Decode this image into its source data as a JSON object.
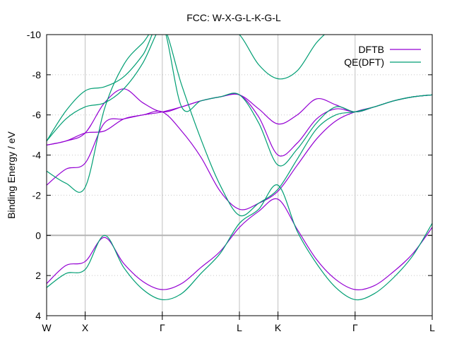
{
  "chart_data": {
    "type": "line",
    "title": "FCC: W-X-G-L-K-G-L",
    "xlabel": "",
    "ylabel": "Binding Energy / eV",
    "xlim": [
      0,
      1
    ],
    "ylim": [
      4,
      -10
    ],
    "y_ticks": [
      -10,
      -8,
      -6,
      -4,
      -2,
      0,
      2,
      4
    ],
    "k_points": [
      {
        "label": "W",
        "x": 0.0
      },
      {
        "label": "X",
        "x": 0.1
      },
      {
        "label": "Γ",
        "x": 0.3
      },
      {
        "label": "L",
        "x": 0.5
      },
      {
        "label": "K",
        "x": 0.6
      },
      {
        "label": "Γ",
        "x": 0.8
      },
      {
        "label": "L",
        "x": 1.0
      }
    ],
    "grid": true,
    "zero_line": true,
    "legend_position": "top-right",
    "series": [
      {
        "name": "DFTB",
        "color": "#9400d3",
        "bands": [
          [
            [
              0,
              2.4
            ],
            [
              0.05,
              1.5
            ],
            [
              0.1,
              1.3
            ],
            [
              0.15,
              0.1
            ],
            [
              0.2,
              1.4
            ],
            [
              0.25,
              2.3
            ],
            [
              0.3,
              2.7
            ],
            [
              0.35,
              2.4
            ],
            [
              0.4,
              1.6
            ],
            [
              0.45,
              0.8
            ],
            [
              0.5,
              -0.4
            ],
            [
              0.55,
              -1.2
            ],
            [
              0.6,
              -1.8
            ],
            [
              0.65,
              -0.3
            ],
            [
              0.7,
              1.2
            ],
            [
              0.75,
              2.2
            ],
            [
              0.8,
              2.7
            ],
            [
              0.85,
              2.5
            ],
            [
              0.9,
              1.8
            ],
            [
              0.95,
              0.9
            ],
            [
              1.0,
              -0.4
            ]
          ],
          [
            [
              0,
              -2.5
            ],
            [
              0.05,
              -3.3
            ],
            [
              0.1,
              -3.6
            ],
            [
              0.15,
              -5.6
            ],
            [
              0.2,
              -5.8
            ],
            [
              0.25,
              -6.0
            ],
            [
              0.3,
              -6.15
            ],
            [
              0.35,
              -5.2
            ],
            [
              0.4,
              -3.9
            ],
            [
              0.45,
              -2.2
            ],
            [
              0.5,
              -1.3
            ],
            [
              0.55,
              -1.6
            ],
            [
              0.6,
              -2.2
            ],
            [
              0.65,
              -3.5
            ],
            [
              0.7,
              -4.8
            ],
            [
              0.75,
              -5.7
            ],
            [
              0.8,
              -6.15
            ],
            [
              0.85,
              -6.4
            ],
            [
              0.9,
              -6.7
            ],
            [
              0.95,
              -6.9
            ],
            [
              1.0,
              -7.0
            ]
          ],
          [
            [
              0,
              -4.5
            ],
            [
              0.05,
              -4.7
            ],
            [
              0.1,
              -5.1
            ],
            [
              0.15,
              -6.6
            ],
            [
              0.2,
              -7.3
            ],
            [
              0.25,
              -6.6
            ],
            [
              0.3,
              -6.15
            ],
            [
              0.35,
              -6.4
            ],
            [
              0.4,
              -6.7
            ],
            [
              0.45,
              -6.9
            ],
            [
              0.5,
              -7.0
            ],
            [
              0.55,
              -6.3
            ],
            [
              0.6,
              -5.55
            ],
            [
              0.65,
              -6.0
            ],
            [
              0.7,
              -6.8
            ],
            [
              0.75,
              -6.5
            ],
            [
              0.8,
              -6.15
            ],
            [
              0.85,
              -6.4
            ],
            [
              0.9,
              -6.7
            ],
            [
              0.95,
              -6.9
            ],
            [
              1.0,
              -7.0
            ]
          ],
          [
            [
              0,
              -4.5
            ],
            [
              0.05,
              -4.7
            ],
            [
              0.1,
              -5.1
            ],
            [
              0.15,
              -5.2
            ],
            [
              0.2,
              -5.8
            ],
            [
              0.25,
              -6.0
            ],
            [
              0.3,
              -6.15
            ],
            [
              0.35,
              -6.4
            ],
            [
              0.4,
              -6.7
            ],
            [
              0.45,
              -6.9
            ],
            [
              0.5,
              -7.0
            ],
            [
              0.55,
              -5.9
            ],
            [
              0.6,
              -4.0
            ],
            [
              0.65,
              -4.6
            ],
            [
              0.7,
              -5.8
            ],
            [
              0.75,
              -6.3
            ],
            [
              0.8,
              -6.15
            ],
            [
              0.85,
              -6.4
            ],
            [
              0.9,
              -6.7
            ],
            [
              0.95,
              -6.9
            ],
            [
              1.0,
              -7.0
            ]
          ]
        ]
      },
      {
        "name": "QE(DFT)",
        "color": "#009e73",
        "bands": [
          [
            [
              0,
              2.6
            ],
            [
              0.05,
              1.9
            ],
            [
              0.1,
              1.7
            ],
            [
              0.15,
              0.0
            ],
            [
              0.2,
              1.6
            ],
            [
              0.25,
              2.7
            ],
            [
              0.3,
              3.2
            ],
            [
              0.35,
              2.9
            ],
            [
              0.4,
              1.9
            ],
            [
              0.45,
              0.9
            ],
            [
              0.5,
              -0.6
            ],
            [
              0.55,
              -1.3
            ],
            [
              0.6,
              -2.5
            ],
            [
              0.65,
              -0.2
            ],
            [
              0.7,
              1.4
            ],
            [
              0.75,
              2.6
            ],
            [
              0.8,
              3.2
            ],
            [
              0.85,
              2.9
            ],
            [
              0.9,
              2.1
            ],
            [
              0.95,
              1.0
            ],
            [
              1.0,
              -0.6
            ]
          ],
          [
            [
              0,
              -3.2
            ],
            [
              0.05,
              -2.6
            ],
            [
              0.1,
              -2.4
            ],
            [
              0.15,
              -6.3
            ],
            [
              0.2,
              -8.5
            ],
            [
              0.25,
              -9.6
            ],
            [
              0.3,
              -10.5
            ],
            [
              0.35,
              -7.5
            ],
            [
              0.4,
              -4.8
            ],
            [
              0.45,
              -2.5
            ],
            [
              0.5,
              -1.0
            ],
            [
              0.55,
              -1.6
            ],
            [
              0.6,
              -2.3
            ],
            [
              0.65,
              -3.8
            ],
            [
              0.7,
              -5.3
            ],
            [
              0.75,
              -6.0
            ],
            [
              0.8,
              -6.15
            ],
            [
              0.85,
              -6.4
            ],
            [
              0.9,
              -6.7
            ],
            [
              0.95,
              -6.9
            ],
            [
              1.0,
              -7.0
            ]
          ],
          [
            [
              0,
              -4.7
            ],
            [
              0.05,
              -5.8
            ],
            [
              0.1,
              -6.4
            ],
            [
              0.15,
              -6.6
            ],
            [
              0.2,
              -7.3
            ],
            [
              0.25,
              -8.6
            ],
            [
              0.3,
              -10.5
            ],
            [
              0.35,
              -10.5
            ],
            [
              0.4,
              -10.5
            ],
            [
              0.45,
              -10.5
            ],
            [
              0.5,
              -10.0
            ],
            [
              0.55,
              -8.5
            ],
            [
              0.6,
              -7.8
            ],
            [
              0.65,
              -8.2
            ],
            [
              0.7,
              -9.6
            ],
            [
              0.75,
              -10.5
            ]
          ],
          [
            [
              0,
              -4.7
            ],
            [
              0.05,
              -6.2
            ],
            [
              0.1,
              -7.2
            ],
            [
              0.15,
              -7.4
            ],
            [
              0.2,
              -7.9
            ],
            [
              0.25,
              -9.0
            ],
            [
              0.3,
              -10.5
            ],
            [
              0.35,
              -6.4
            ],
            [
              0.4,
              -6.7
            ],
            [
              0.45,
              -6.9
            ],
            [
              0.5,
              -7.0
            ],
            [
              0.55,
              -5.6
            ],
            [
              0.6,
              -3.5
            ],
            [
              0.65,
              -4.3
            ],
            [
              0.7,
              -5.6
            ],
            [
              0.75,
              -6.4
            ],
            [
              0.8,
              -6.15
            ],
            [
              0.85,
              -6.4
            ],
            [
              0.9,
              -6.7
            ],
            [
              0.95,
              -6.9
            ],
            [
              1.0,
              -7.0
            ]
          ]
        ]
      }
    ]
  }
}
